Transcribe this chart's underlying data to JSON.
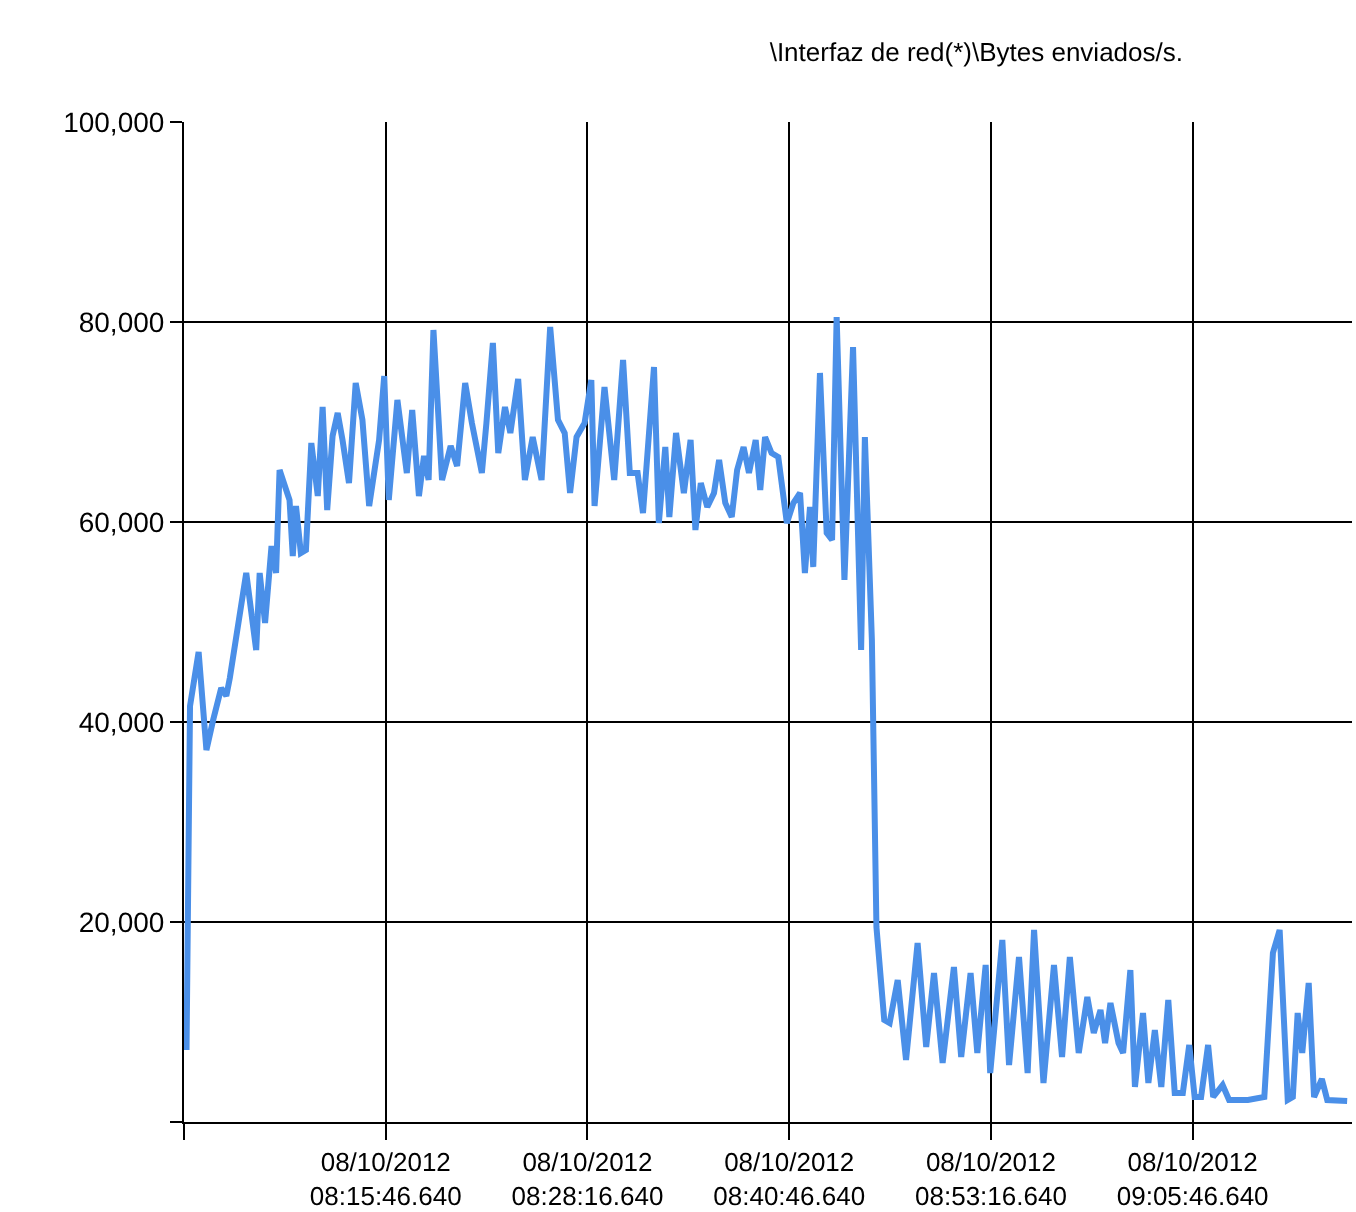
{
  "chart_data": {
    "type": "line",
    "title": "\\Interfaz de red(*)\\Bytes enviados/s.",
    "x": [
      "2012-10-08T08:03:26",
      "2012-10-08T08:03:39",
      "2012-10-08T08:04:11",
      "2012-10-08T08:04:40",
      "2012-10-08T08:05:05",
      "2012-10-08T08:05:35",
      "2012-10-08T08:05:54",
      "2012-10-08T08:06:07",
      "2012-10-08T08:07:08",
      "2012-10-08T08:07:45",
      "2012-10-08T08:07:58",
      "2012-10-08T08:08:18",
      "2012-10-08T08:08:42",
      "2012-10-08T08:08:59",
      "2012-10-08T08:09:12",
      "2012-10-08T08:09:49",
      "2012-10-08T08:10:01",
      "2012-10-08T08:10:13",
      "2012-10-08T08:10:31",
      "2012-10-08T08:10:50",
      "2012-10-08T08:11:10",
      "2012-10-08T08:11:34",
      "2012-10-08T08:11:52",
      "2012-10-08T08:12:09",
      "2012-10-08T08:12:29",
      "2012-10-08T08:12:48",
      "2012-10-08T08:13:06",
      "2012-10-08T08:13:30",
      "2012-10-08T08:13:55",
      "2012-10-08T08:14:20",
      "2012-10-08T08:14:45",
      "2012-10-08T08:15:22",
      "2012-10-08T08:15:41",
      "2012-10-08T08:15:58",
      "2012-10-08T08:16:30",
      "2012-10-08T08:17:05",
      "2012-10-08T08:17:25",
      "2012-10-08T08:17:50",
      "2012-10-08T08:18:09",
      "2012-10-08T08:18:26",
      "2012-10-08T08:18:44",
      "2012-10-08T08:19:16",
      "2012-10-08T08:19:48",
      "2012-10-08T08:20:12",
      "2012-10-08T08:20:42",
      "2012-10-08T08:21:07",
      "2012-10-08T08:21:44",
      "2012-10-08T08:22:01",
      "2012-10-08T08:22:25",
      "2012-10-08T08:22:45",
      "2012-10-08T08:23:10",
      "2012-10-08T08:23:30",
      "2012-10-08T08:23:59",
      "2012-10-08T08:24:24",
      "2012-10-08T08:24:53",
      "2012-10-08T08:25:26",
      "2012-10-08T08:25:58",
      "2012-10-08T08:26:27",
      "2012-10-08T08:26:52",
      "2012-10-08T08:27:12",
      "2012-10-08T08:27:36",
      "2012-10-08T08:28:06",
      "2012-10-08T08:28:31",
      "2012-10-08T08:28:43",
      "2012-10-08T08:29:20",
      "2012-10-08T08:29:56",
      "2012-10-08T08:30:29",
      "2012-10-08T08:30:54",
      "2012-10-08T08:31:23",
      "2012-10-08T08:31:43",
      "2012-10-08T08:32:24",
      "2012-10-08T08:32:42",
      "2012-10-08T08:33:06",
      "2012-10-08T08:33:21",
      "2012-10-08T08:33:46",
      "2012-10-08T08:34:15",
      "2012-10-08T08:34:40",
      "2012-10-08T08:34:58",
      "2012-10-08T08:35:18",
      "2012-10-08T08:35:42",
      "2012-10-08T08:36:07",
      "2012-10-08T08:36:26",
      "2012-10-08T08:36:49",
      "2012-10-08T08:37:13",
      "2012-10-08T08:37:33",
      "2012-10-08T08:37:57",
      "2012-10-08T08:38:17",
      "2012-10-08T08:38:42",
      "2012-10-08T08:38:59",
      "2012-10-08T08:39:17",
      "2012-10-08T08:39:41",
      "2012-10-08T08:40:06",
      "2012-10-08T08:40:38",
      "2012-10-08T08:41:02",
      "2012-10-08T08:41:27",
      "2012-10-08T08:41:45",
      "2012-10-08T08:42:04",
      "2012-10-08T08:42:16",
      "2012-10-08T08:42:41",
      "2012-10-08T08:43:06",
      "2012-10-08T08:43:26",
      "2012-10-08T08:43:43",
      "2012-10-08T08:44:12",
      "2012-10-08T08:44:44",
      "2012-10-08T08:45:14",
      "2012-10-08T08:45:28",
      "2012-10-08T08:45:54",
      "2012-10-08T08:46:11",
      "2012-10-08T08:46:40",
      "2012-10-08T08:47:00",
      "2012-10-08T08:47:30",
      "2012-10-08T08:48:01",
      "2012-10-08T08:48:44",
      "2012-10-08T08:49:16",
      "2012-10-08T08:49:45",
      "2012-10-08T08:50:17",
      "2012-10-08T08:50:59",
      "2012-10-08T08:51:26",
      "2012-10-08T08:52:01",
      "2012-10-08T08:52:26",
      "2012-10-08T08:52:57",
      "2012-10-08T08:53:14",
      "2012-10-08T08:53:59",
      "2012-10-08T08:54:24",
      "2012-10-08T08:55:01",
      "2012-10-08T08:55:33",
      "2012-10-08T08:55:57",
      "2012-10-08T08:56:32",
      "2012-10-08T08:57:11",
      "2012-10-08T08:57:41",
      "2012-10-08T08:58:10",
      "2012-10-08T08:58:43",
      "2012-10-08T08:59:15",
      "2012-10-08T08:59:39",
      "2012-10-08T09:00:04",
      "2012-10-08T09:00:21",
      "2012-10-08T09:00:41",
      "2012-10-08T09:01:11",
      "2012-10-08T09:01:28",
      "2012-10-08T09:01:55",
      "2012-10-08T09:02:12",
      "2012-10-08T09:02:42",
      "2012-10-08T09:03:02",
      "2012-10-08T09:03:26",
      "2012-10-08T09:03:50",
      "2012-10-08T09:04:16",
      "2012-10-08T09:04:40",
      "2012-10-08T09:05:10",
      "2012-10-08T09:05:34",
      "2012-10-08T09:05:54",
      "2012-10-08T09:06:18",
      "2012-10-08T09:06:44",
      "2012-10-08T09:07:03",
      "2012-10-08T09:07:38",
      "2012-10-08T09:08:02",
      "2012-10-08T09:09:12",
      "2012-10-08T09:10:13",
      "2012-10-08T09:10:45",
      "2012-10-08T09:11:10",
      "2012-10-08T09:11:40",
      "2012-10-08T09:11:59",
      "2012-10-08T09:12:17",
      "2012-10-08T09:12:34",
      "2012-10-08T09:12:58",
      "2012-10-08T09:13:18",
      "2012-10-08T09:13:47",
      "2012-10-08T09:14:07",
      "2012-10-08T09:15:21"
    ],
    "series": [
      {
        "color": "#4a8fe8",
        "values": [
          7200,
          41600,
          47000,
          37200,
          40200,
          43400,
          42600,
          44400,
          54900,
          47200,
          54900,
          49900,
          57600,
          54900,
          65200,
          62200,
          56600,
          61600,
          56900,
          57200,
          67900,
          62600,
          71500,
          61200,
          68600,
          70900,
          68200,
          63900,
          73900,
          70200,
          61600,
          68200,
          74600,
          62200,
          72200,
          64900,
          71200,
          62600,
          66600,
          64200,
          79200,
          64200,
          67600,
          65600,
          73900,
          69900,
          64900,
          69900,
          77900,
          66900,
          71500,
          68900,
          74300,
          64200,
          68500,
          64200,
          79500,
          70200,
          68900,
          62900,
          68500,
          69900,
          74200,
          61600,
          73500,
          64200,
          76200,
          64900,
          64900,
          60900,
          75500,
          59900,
          67500,
          60500,
          68900,
          62900,
          68200,
          59200,
          63900,
          61500,
          62900,
          66200,
          61900,
          60500,
          65200,
          67500,
          64900,
          68200,
          63200,
          68500,
          66900,
          66500,
          59900,
          61900,
          62900,
          54900,
          61500,
          55500,
          74900,
          58900,
          58200,
          80500,
          54200,
          77500,
          47200,
          68500,
          48200,
          19500,
          10200,
          9900,
          14200,
          6200,
          17900,
          7500,
          14900,
          5900,
          15500,
          6500,
          14900,
          6900,
          15700,
          4900,
          18200,
          5700,
          16500,
          4900,
          19200,
          3900,
          15700,
          6500,
          16500,
          6900,
          12500,
          8900,
          11200,
          7900,
          11900,
          7900,
          6900,
          15200,
          3500,
          10900,
          3900,
          9200,
          3500,
          12200,
          2900,
          2900,
          7700,
          2500,
          2500,
          7700,
          2500,
          3700,
          2200,
          2200,
          2500,
          16900,
          19200,
          2200,
          2500,
          10900,
          6900,
          13900,
          2500,
          4300,
          2200,
          2100
        ]
      }
    ],
    "xlim": [
      "2012-10-08T08:03:16.640",
      "2012-10-08T09:15:39"
    ],
    "xticks": [
      {
        "value": "2012-10-08T08:03:16.640",
        "label": null
      },
      {
        "value": "2012-10-08T08:15:46.640",
        "label": "08/10/2012 08:15:46.640"
      },
      {
        "value": "2012-10-08T08:28:16.640",
        "label": "08/10/2012 08:28:16.640"
      },
      {
        "value": "2012-10-08T08:40:46.640",
        "label": "08/10/2012 08:40:46.640"
      },
      {
        "value": "2012-10-08T08:53:16.640",
        "label": "08/10/2012 08:53:16.640"
      },
      {
        "value": "2012-10-08T09:05:46.640",
        "label": "08/10/2012 09:05:46.640"
      }
    ],
    "ylim": [
      0,
      100000
    ],
    "yticks": [
      {
        "value": 0,
        "label": null
      },
      {
        "value": 20000,
        "label": "20,000"
      },
      {
        "value": 40000,
        "label": "40,000"
      },
      {
        "value": 60000,
        "label": "60,000"
      },
      {
        "value": 80000,
        "label": "80,000"
      },
      {
        "value": 100000,
        "label": "100,000"
      }
    ],
    "grid": true,
    "legend": false,
    "marker": "none",
    "line_style": "solid"
  }
}
